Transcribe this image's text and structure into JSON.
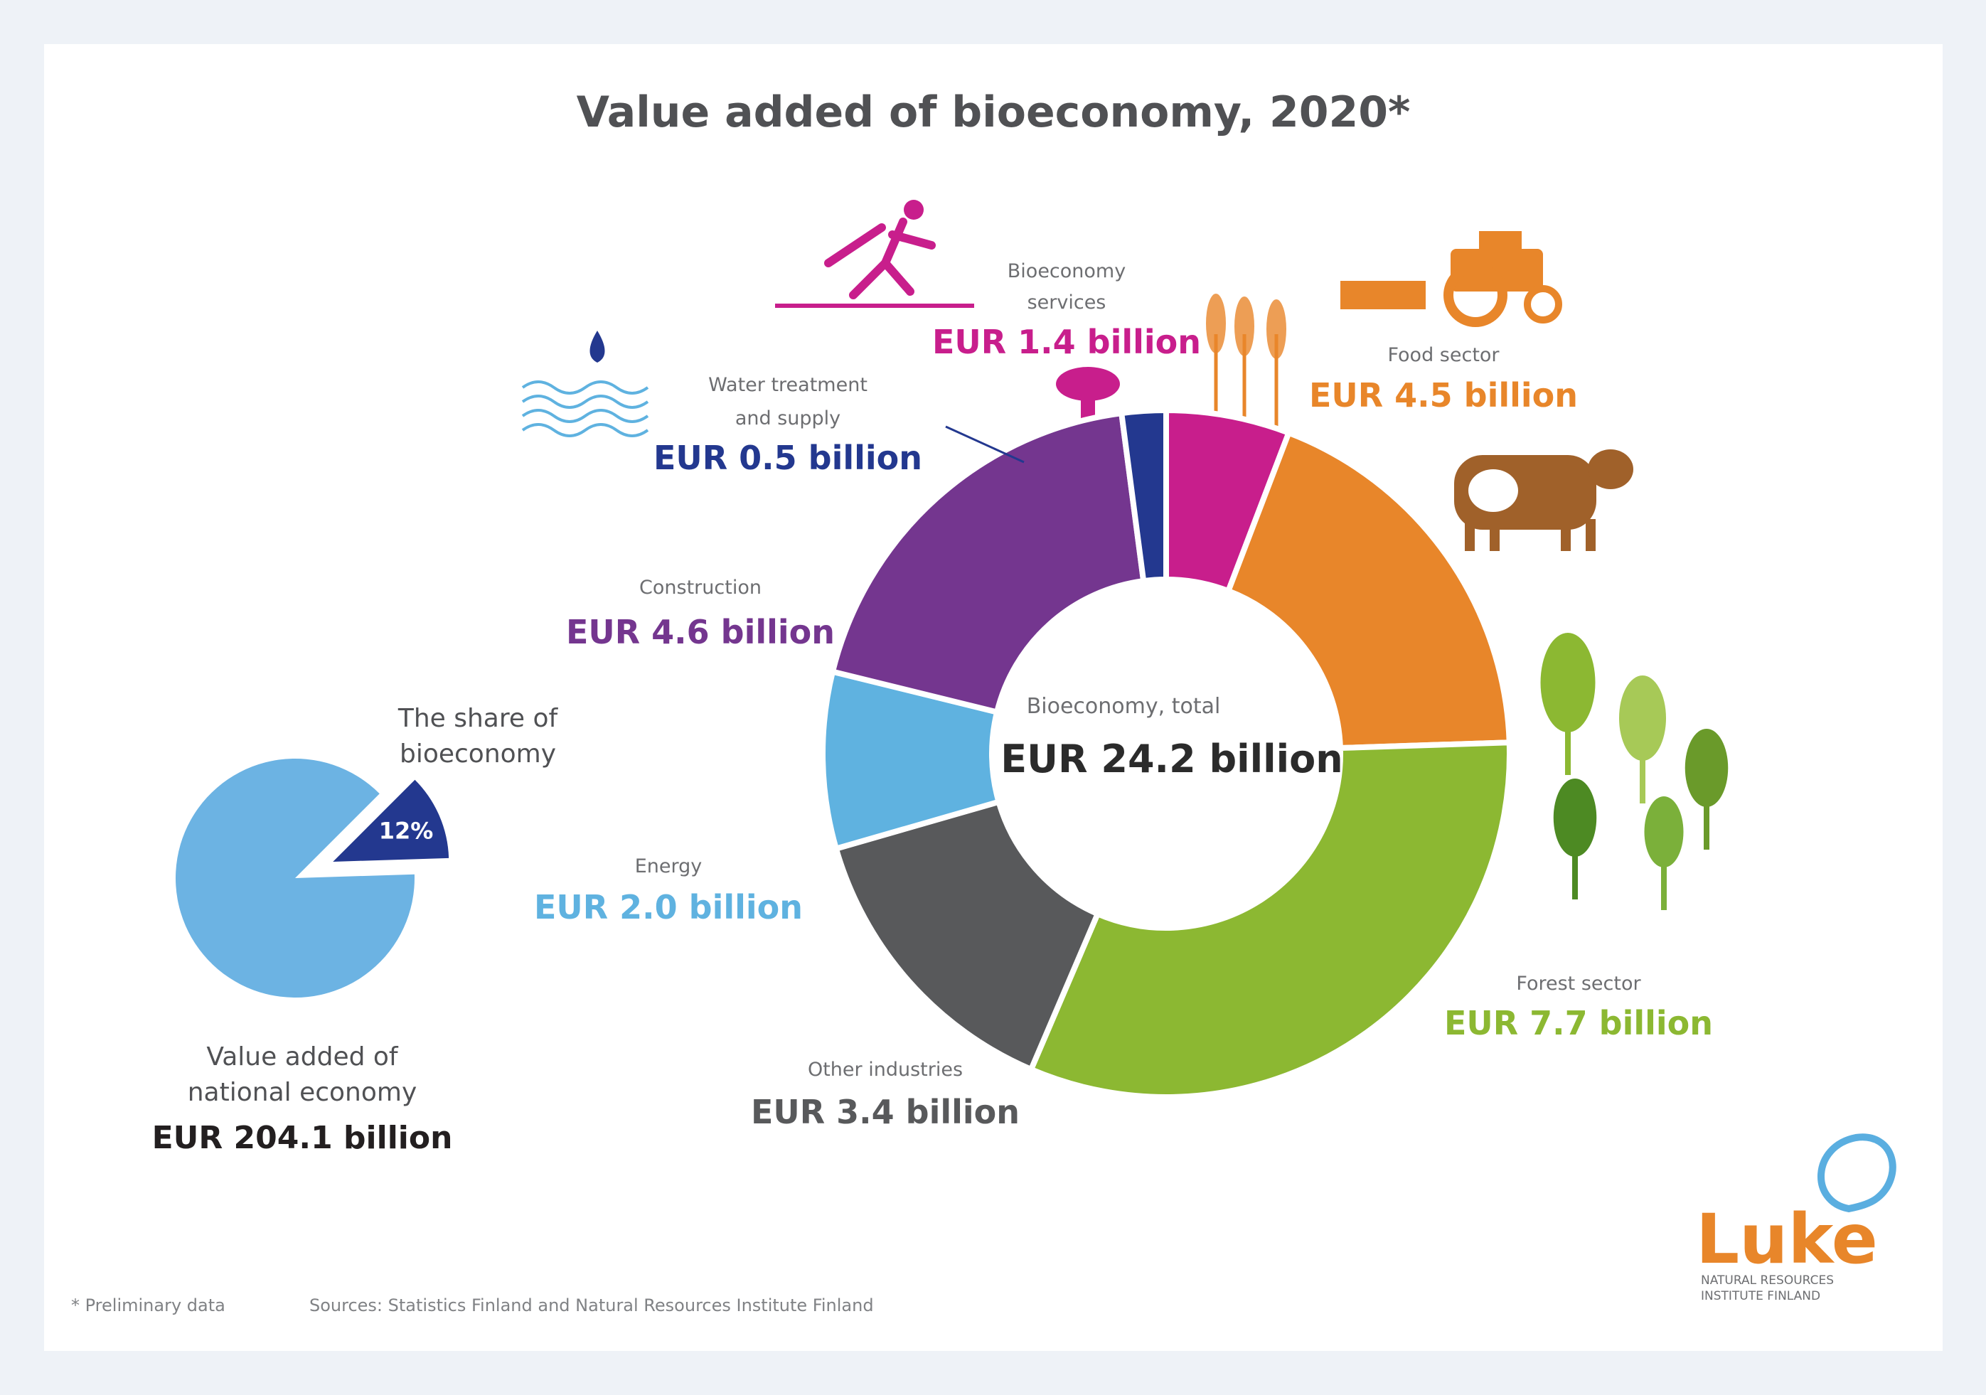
{
  "title": "Value added of bioeconomy, 2020*",
  "center": {
    "label": "Bioeconomy, total",
    "value": "EUR 24.2 billion"
  },
  "chart_data": [
    {
      "type": "pie",
      "variant": "donut",
      "total_label": "EUR 24.2 billion",
      "categories": [
        "Bioeconomy services",
        "Food sector",
        "Forest sector",
        "Other industries",
        "Energy",
        "Construction",
        "Water treatment and supply"
      ],
      "values": [
        1.4,
        4.5,
        7.7,
        3.4,
        2.0,
        4.6,
        0.5
      ],
      "value_labels": [
        "EUR 1.4 billion",
        "EUR 4.5 billion",
        "EUR 7.7 billion",
        "EUR 3.4 billion",
        "EUR 2.0 billion",
        "EUR 4.6 billion",
        "EUR 0.5 billion"
      ],
      "label_lines": [
        [
          "Bioeconomy",
          "services"
        ],
        [
          "Food sector"
        ],
        [
          "Forest sector"
        ],
        [
          "Other industries"
        ],
        [
          "Energy"
        ],
        [
          "Construction"
        ],
        [
          "Water treatment",
          "and supply"
        ]
      ],
      "colors": [
        "#c81e8c",
        "#e8862a",
        "#8cb832",
        "#58595b",
        "#5fb2e0",
        "#74368f",
        "#23388f"
      ]
    },
    {
      "type": "pie",
      "categories": [
        "Bioeconomy",
        "Rest of national economy"
      ],
      "values": [
        12,
        88
      ],
      "slice_label": "12%",
      "title_lines": [
        "The share of",
        "bioeconomy"
      ],
      "caption_lines": [
        "Value added of",
        "national economy"
      ],
      "caption_value": "EUR 204.1 billion",
      "colors": [
        "#23388f",
        "#6cb3e3"
      ]
    }
  ],
  "logo": {
    "text": "Luke",
    "subtitle_lines": [
      "NATURAL RESOURCES",
      "INSTITUTE FINLAND"
    ]
  },
  "footer": {
    "note": "* Preliminary data",
    "sources": "Sources: Statistics Finland and Natural Resources Institute Finland"
  }
}
